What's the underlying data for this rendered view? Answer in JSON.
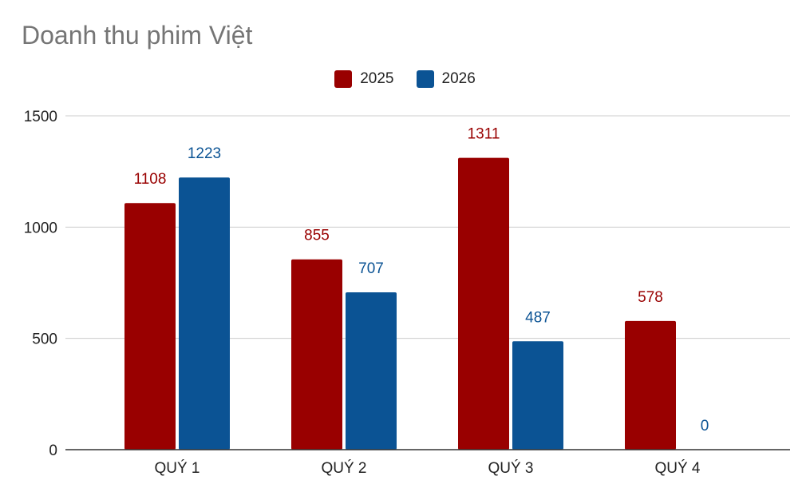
{
  "chart_data": {
    "type": "bar",
    "title": "Doanh thu phim Việt",
    "categories": [
      "QUÝ 1",
      "QUÝ 2",
      "QUÝ 3",
      "QUÝ 4"
    ],
    "series": [
      {
        "name": "2025",
        "color": "#990000",
        "values": [
          1108,
          855,
          1311,
          578
        ]
      },
      {
        "name": "2026",
        "color": "#0b5394",
        "values": [
          1223,
          707,
          487,
          0
        ]
      }
    ],
    "ylim": [
      0,
      1500
    ],
    "yticks": [
      "0",
      "500",
      "1000",
      "1500"
    ],
    "grid": true,
    "legend_position": "top-center",
    "data_labels": true
  }
}
